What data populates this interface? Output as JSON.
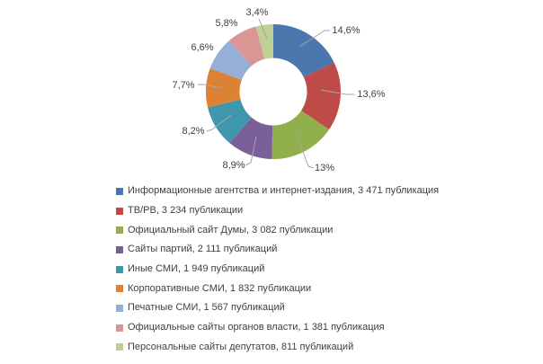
{
  "chart_data": {
    "type": "pie",
    "subtype": "doughnut",
    "title": "",
    "legend_position": "bottom-left",
    "slices": [
      {
        "name": "Информационные агентства и интернет-издания",
        "publications": 3471,
        "percent_label": "14,6%",
        "legend_label": "Информационные агентства и интернет-издания, 3 471 публикация",
        "color": "#4a78ae"
      },
      {
        "name": "ТВ/РВ",
        "publications": 3234,
        "percent_label": "13,6%",
        "legend_label": "ТВ/РВ, 3 234 публикации",
        "color": "#be4b48"
      },
      {
        "name": "Официальный сайт Думы",
        "publications": 3082,
        "percent_label": "13%",
        "legend_label": "Официальный сайт Думы, 3 082 публикации",
        "color": "#92af4e"
      },
      {
        "name": "Сайты партий",
        "publications": 2111,
        "percent_label": "8,9%",
        "legend_label": "Сайты партий, 2 111 публикаций",
        "color": "#7a5f98"
      },
      {
        "name": "Иные СМИ",
        "publications": 1949,
        "percent_label": "8,2%",
        "legend_label": "Иные СМИ, 1 949 публикаций",
        "color": "#3f97ad"
      },
      {
        "name": "Корпоративные СМИ",
        "publications": 1832,
        "percent_label": "7,7%",
        "legend_label": "Корпоративные СМИ, 1 832 публикации",
        "color": "#dc8234"
      },
      {
        "name": "Печатные СМИ",
        "publications": 1567,
        "percent_label": "6,6%",
        "legend_label": "Печатные СМИ, 1 567 публикаций",
        "color": "#95afd6"
      },
      {
        "name": "Официальные сайты органов власти",
        "publications": 1381,
        "percent_label": "5,8%",
        "legend_label": "Официальные сайты органов власти, 1 381 публикация",
        "color": "#d99694"
      },
      {
        "name": "Персональные сайты депутатов",
        "publications": 811,
        "percent_label": "3,4%",
        "legend_label": "Персональные сайты депутатов, 811 публикаций",
        "color": "#bdd096"
      }
    ],
    "style": {
      "leader_line_color": "#a6a6a6",
      "label_text_color": "#3f3f3f",
      "background_color": "#ffffff"
    }
  }
}
